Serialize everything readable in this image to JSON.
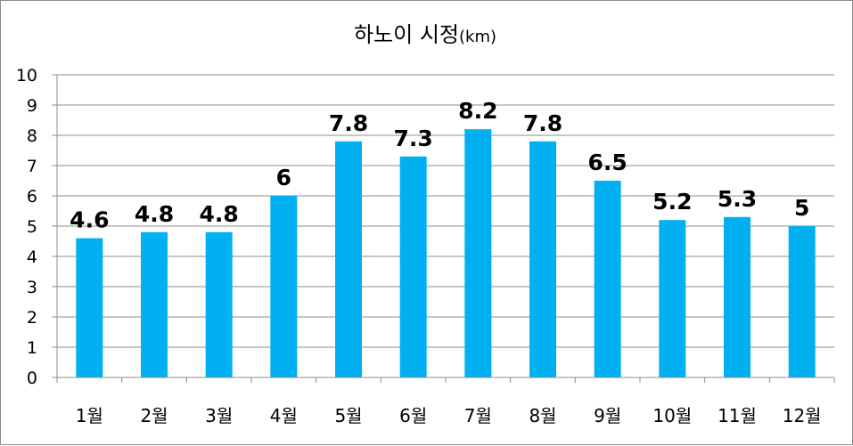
{
  "chart_data": {
    "type": "bar",
    "title": "하노이 시정",
    "title_unit": "(km)",
    "categories": [
      "1월",
      "2월",
      "3월",
      "4월",
      "5월",
      "6월",
      "7월",
      "8월",
      "9월",
      "10월",
      "11월",
      "12월"
    ],
    "values": [
      4.6,
      4.8,
      4.8,
      6,
      7.8,
      7.3,
      8.2,
      7.8,
      6.5,
      5.2,
      5.3,
      5
    ],
    "ylim": [
      0,
      10
    ],
    "yticks": [
      0,
      1,
      2,
      3,
      4,
      5,
      6,
      7,
      8,
      9,
      10
    ],
    "grid": true,
    "legend": "none",
    "bar_color": "#00B0F0"
  }
}
